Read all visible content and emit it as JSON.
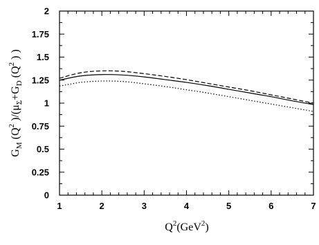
{
  "chart_data": {
    "type": "line",
    "xlabel": {
      "main": "Q",
      "sup": "2",
      "rest": "(GeV",
      "rest_sup": "2",
      "close": ")"
    },
    "ylabel": {
      "p1": "G",
      "p1_sub": "M",
      "p2": " (Q",
      "p2_sup": "2",
      "p3": " )/(μ",
      "p3_sub": "Σ",
      "p4": "+G",
      "p4_sub": "D",
      "p5": " (Q",
      "p5_sup": "2",
      "p6": " ) )"
    },
    "xlim": [
      1,
      7
    ],
    "ylim": [
      0,
      2
    ],
    "x_ticks": [
      "1",
      "2",
      "3",
      "4",
      "5",
      "6",
      "7"
    ],
    "y_ticks": [
      "0",
      "0.25",
      "0.5",
      "0.75",
      "1",
      "1.25",
      "1.5",
      "1.75",
      "2"
    ],
    "x": [
      1.0,
      1.5,
      2.0,
      2.5,
      3.0,
      3.5,
      4.0,
      4.5,
      5.0,
      5.5,
      6.0,
      6.5,
      7.0
    ],
    "series": [
      {
        "style": "solid",
        "values": [
          1.25,
          1.295,
          1.31,
          1.305,
          1.285,
          1.255,
          1.225,
          1.19,
          1.15,
          1.11,
          1.07,
          1.025,
          0.985
        ]
      },
      {
        "style": "dashed",
        "values": [
          1.27,
          1.33,
          1.35,
          1.345,
          1.32,
          1.29,
          1.255,
          1.215,
          1.175,
          1.135,
          1.09,
          1.045,
          1.0
        ]
      },
      {
        "style": "dotted",
        "values": [
          1.185,
          1.225,
          1.24,
          1.235,
          1.21,
          1.18,
          1.145,
          1.11,
          1.07,
          1.03,
          0.99,
          0.95,
          0.91
        ]
      }
    ]
  }
}
